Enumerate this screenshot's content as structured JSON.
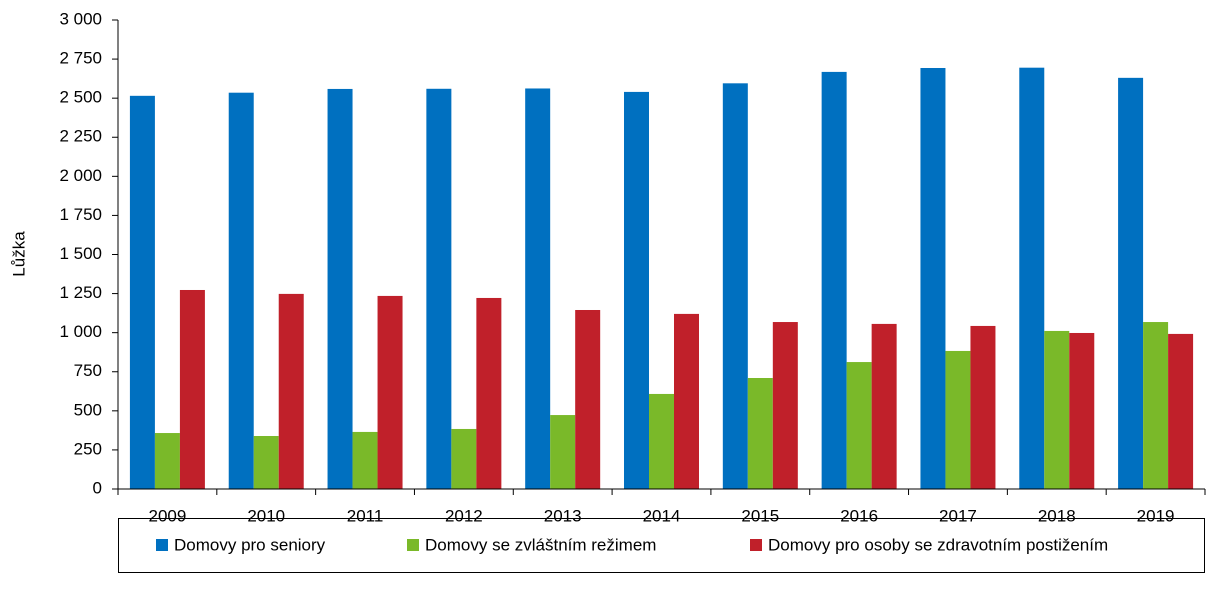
{
  "chart_data": {
    "type": "bar",
    "y_label": "Lůžka",
    "categories": [
      "2009",
      "2010",
      "2011",
      "2012",
      "2013",
      "2014",
      "2015",
      "2016",
      "2017",
      "2018",
      "2019"
    ],
    "series": [
      {
        "name": "Domovy pro seniory",
        "color": "#0070c0",
        "values": [
          2515,
          2535,
          2559,
          2560,
          2562,
          2540,
          2595,
          2668,
          2693,
          2695,
          2630
        ]
      },
      {
        "name": "Domovy se zvláštním režimem",
        "color": "#7ab929",
        "values": [
          358,
          339,
          365,
          384,
          473,
          608,
          710,
          812,
          883,
          1011,
          1068
        ]
      },
      {
        "name": "Domovy pro osoby se zdravotním postižením",
        "color": "#c0202a",
        "values": [
          1273,
          1248,
          1235,
          1222,
          1145,
          1120,
          1068,
          1056,
          1043,
          998,
          992
        ]
      }
    ],
    "ylim": [
      0,
      3000
    ],
    "yticks": [
      0,
      250,
      500,
      750,
      {
        "value": 1000,
        "label": "1 000"
      },
      {
        "value": 1250,
        "label": "1 250"
      },
      {
        "value": 1500,
        "label": "1 500"
      },
      {
        "value": 1750,
        "label": "1 750"
      },
      {
        "value": 2000,
        "label": "2 000"
      },
      {
        "value": 2250,
        "label": "2 250"
      },
      {
        "value": 2500,
        "label": "2 500"
      },
      {
        "value": 2750,
        "label": "2 750"
      },
      {
        "value": 3000,
        "label": "3 000"
      }
    ],
    "grid": false
  }
}
